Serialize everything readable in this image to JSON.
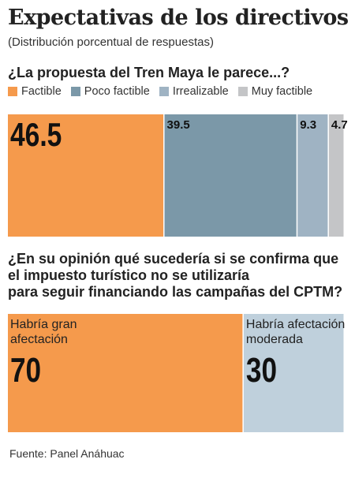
{
  "title": "Expectativas de los directivos",
  "subtitle": "(Distribución porcentual de respuestas)",
  "source": "Fuente: Panel Anáhuac",
  "chart_data": [
    {
      "type": "bar",
      "title": "¿La propuesta del Tren Maya le parece...?",
      "orientation": "stacked-horizontal",
      "legend_position": "top-left",
      "categories": [
        "Factible",
        "Poco factible",
        "Irrealizable",
        "Muy factible"
      ],
      "values": [
        46.5,
        39.5,
        9.3,
        4.7
      ],
      "value_labels": [
        "46.5",
        "39.5",
        "9.3",
        "4.7"
      ],
      "colors": [
        "#f59a4c",
        "#7b98a8",
        "#9fb3c3",
        "#c4c5c7"
      ]
    },
    {
      "type": "bar",
      "title": "¿En su opinión qué sucedería si se confirma que el impuesto turístico no se utilizaría para seguir financiando las campañas del CPTM?",
      "title_lines": [
        "¿En su opinión qué sucedería si se confirma que",
        "el impuesto turístico no se utilizaría",
        "para seguir financiando las campañas del CPTM?"
      ],
      "orientation": "stacked-horizontal",
      "categories": [
        "Habría gran afectación",
        "Habría afectación moderada"
      ],
      "category_lines": [
        [
          "Habría gran",
          "afectación"
        ],
        [
          "Habría afectación",
          "moderada"
        ]
      ],
      "values": [
        70,
        30
      ],
      "value_labels": [
        "70",
        "30"
      ],
      "colors": [
        "#f59a4c",
        "#bfd0dc"
      ]
    }
  ]
}
